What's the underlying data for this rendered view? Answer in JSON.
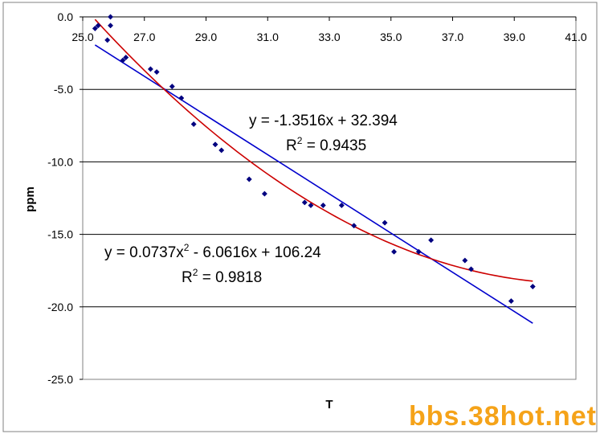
{
  "chart_data": {
    "type": "scatter",
    "title": "",
    "xlabel": "T",
    "ylabel": "ppm",
    "xlim": [
      25.0,
      41.0
    ],
    "ylim": [
      -25.0,
      0.0
    ],
    "x_ticks": [
      "25.0",
      "27.0",
      "29.0",
      "31.0",
      "33.0",
      "35.0",
      "37.0",
      "39.0",
      "41.0"
    ],
    "y_ticks": [
      "0.0",
      "-5.0",
      "-10.0",
      "-15.0",
      "-20.0",
      "-25.0"
    ],
    "grid": "horizontal",
    "marker_color": "#000080",
    "points": [
      {
        "x": 25.4,
        "y": -0.8
      },
      {
        "x": 25.5,
        "y": -0.6
      },
      {
        "x": 25.8,
        "y": -1.6
      },
      {
        "x": 25.9,
        "y": -0.6
      },
      {
        "x": 25.9,
        "y": 0.0
      },
      {
        "x": 26.3,
        "y": -3.0
      },
      {
        "x": 26.4,
        "y": -2.8
      },
      {
        "x": 27.2,
        "y": -3.6
      },
      {
        "x": 27.4,
        "y": -3.8
      },
      {
        "x": 27.9,
        "y": -4.8
      },
      {
        "x": 28.2,
        "y": -5.6
      },
      {
        "x": 28.6,
        "y": -7.4
      },
      {
        "x": 29.3,
        "y": -8.8
      },
      {
        "x": 29.5,
        "y": -9.2
      },
      {
        "x": 30.4,
        "y": -11.2
      },
      {
        "x": 30.9,
        "y": -12.2
      },
      {
        "x": 32.2,
        "y": -12.8
      },
      {
        "x": 32.4,
        "y": -13.0
      },
      {
        "x": 32.8,
        "y": -13.0
      },
      {
        "x": 33.4,
        "y": -13.0
      },
      {
        "x": 33.8,
        "y": -14.4
      },
      {
        "x": 34.8,
        "y": -14.2
      },
      {
        "x": 35.1,
        "y": -16.2
      },
      {
        "x": 35.9,
        "y": -16.2
      },
      {
        "x": 36.3,
        "y": -15.4
      },
      {
        "x": 37.4,
        "y": -16.8
      },
      {
        "x": 37.6,
        "y": -17.4
      },
      {
        "x": 38.9,
        "y": -19.6
      },
      {
        "x": 39.6,
        "y": -18.6
      }
    ],
    "trendlines": [
      {
        "kind": "linear",
        "color": "#0000cc",
        "coef": [
          32.394,
          -1.3516
        ],
        "x_range": [
          25.4,
          39.6
        ],
        "eq_label": "y = -1.3516x + 32.394",
        "r2_prefix": "R",
        "r2_sup": "2",
        "r2_value": " = 0.9435"
      },
      {
        "kind": "poly2",
        "color": "#cc0000",
        "coef": [
          106.24,
          -6.0616,
          0.0737
        ],
        "x_range": [
          25.4,
          39.6
        ],
        "eq_prefix": "y = 0.0737x",
        "eq_sup": "2",
        "eq_suffix": " - 6.0616x + 106.24",
        "r2_prefix": "R",
        "r2_sup": "2",
        "r2_value": " = 0.9818"
      }
    ]
  },
  "watermark": "bbs.38hot.net"
}
